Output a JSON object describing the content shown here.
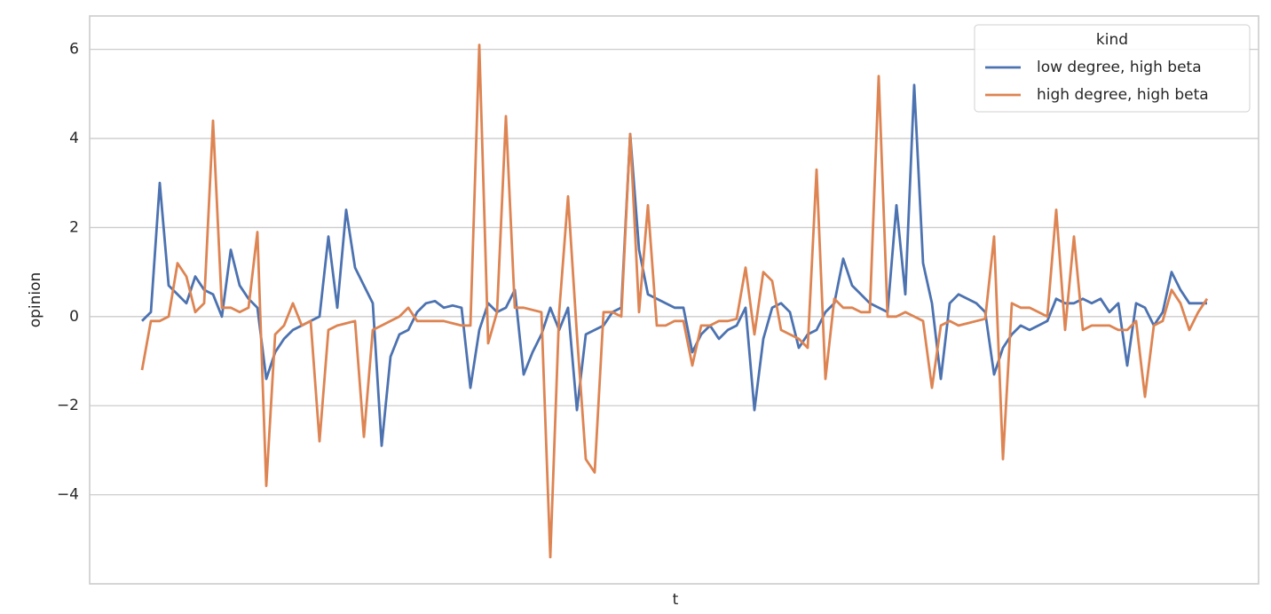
{
  "chart_data": {
    "type": "line",
    "x_label": "t",
    "y_label": "opinion",
    "legend_title": "kind",
    "legend_position": "upper right",
    "grid": true,
    "ylim": [
      -6.0,
      6.75
    ],
    "yticks": [
      {
        "value": -4,
        "label": "−4"
      },
      {
        "value": -2,
        "label": "−2"
      },
      0,
      2,
      4,
      6
    ],
    "categories": [
      null,
      null,
      null,
      null,
      null,
      null,
      null,
      null,
      null,
      null,
      null,
      null,
      null,
      null,
      null,
      null,
      null,
      null,
      null,
      null,
      null,
      null,
      null,
      null,
      null,
      null,
      null,
      null,
      null,
      null,
      null,
      null,
      null,
      null,
      null,
      null,
      null,
      null,
      null,
      null,
      null,
      null,
      null,
      null,
      null,
      null,
      null,
      null,
      null,
      null,
      null,
      null,
      null,
      null,
      null,
      null,
      null,
      null,
      null,
      null,
      null,
      null,
      null,
      null,
      null,
      null,
      null,
      null,
      null,
      null,
      null,
      null,
      null,
      null,
      null,
      null,
      null,
      null,
      null,
      null,
      null,
      null,
      null,
      null,
      null,
      null,
      null,
      null,
      null,
      null,
      null,
      null,
      null,
      null,
      null,
      null,
      null,
      null,
      null,
      null,
      null,
      null,
      null,
      null,
      null,
      null,
      null,
      null,
      null,
      null,
      null,
      null,
      null,
      null,
      null,
      null,
      null,
      null,
      null,
      null,
      null
    ],
    "series": [
      {
        "name": "low degree, high beta",
        "color": "#4c72b0",
        "values": [
          -0.1,
          0.1,
          3.0,
          0.7,
          0.5,
          0.3,
          0.9,
          0.6,
          0.5,
          0.0,
          1.5,
          0.7,
          0.4,
          0.2,
          -1.4,
          -0.8,
          -0.5,
          -0.3,
          -0.2,
          -0.1,
          0.0,
          1.8,
          0.2,
          2.4,
          1.1,
          0.7,
          0.3,
          -2.9,
          -0.9,
          -0.4,
          -0.3,
          0.1,
          0.3,
          0.35,
          0.2,
          0.25,
          0.2,
          -1.6,
          -0.3,
          0.3,
          0.1,
          0.2,
          0.6,
          -1.3,
          -0.8,
          -0.4,
          0.2,
          -0.3,
          0.2,
          -2.1,
          -0.4,
          -0.3,
          -0.2,
          0.1,
          0.2,
          4.1,
          1.5,
          0.5,
          0.4,
          0.3,
          0.2,
          0.2,
          -0.8,
          -0.4,
          -0.2,
          -0.5,
          -0.3,
          -0.2,
          0.2,
          -2.1,
          -0.5,
          0.2,
          0.3,
          0.1,
          -0.7,
          -0.4,
          -0.3,
          0.1,
          0.3,
          1.3,
          0.7,
          0.5,
          0.3,
          0.2,
          0.1,
          2.5,
          0.5,
          5.2,
          1.2,
          0.3,
          -1.4,
          0.3,
          0.5,
          0.4,
          0.3,
          0.1,
          -1.3,
          -0.7,
          -0.4,
          -0.2,
          -0.3,
          -0.2,
          -0.1,
          0.4,
          0.3,
          0.3,
          0.4,
          0.3,
          0.4,
          0.1,
          0.3,
          -1.1,
          0.3,
          0.2,
          -0.2,
          0.1,
          1.0,
          0.6,
          0.3,
          0.3,
          0.3
        ]
      },
      {
        "name": "high degree, high beta",
        "color": "#dd8452",
        "values": [
          -1.2,
          -0.1,
          -0.1,
          0.0,
          1.2,
          0.9,
          0.1,
          0.3,
          4.4,
          0.2,
          0.2,
          0.1,
          0.2,
          1.9,
          -3.8,
          -0.4,
          -0.2,
          0.3,
          -0.2,
          -0.1,
          -2.8,
          -0.3,
          -0.2,
          -0.15,
          -0.1,
          -2.7,
          -0.3,
          -0.2,
          -0.1,
          0.0,
          0.2,
          -0.1,
          -0.1,
          -0.1,
          -0.1,
          -0.15,
          -0.2,
          -0.2,
          6.1,
          -0.6,
          0.1,
          4.5,
          0.2,
          0.2,
          0.15,
          0.1,
          -5.4,
          0.1,
          2.7,
          -0.4,
          -3.2,
          -3.5,
          0.1,
          0.1,
          0.0,
          4.1,
          0.1,
          2.5,
          -0.2,
          -0.2,
          -0.1,
          -0.1,
          -1.1,
          -0.2,
          -0.2,
          -0.1,
          -0.1,
          -0.05,
          1.1,
          -0.4,
          1.0,
          0.8,
          -0.3,
          -0.4,
          -0.5,
          -0.7,
          3.3,
          -1.4,
          0.4,
          0.2,
          0.2,
          0.1,
          0.1,
          5.4,
          0.0,
          0.0,
          0.1,
          0.0,
          -0.1,
          -1.6,
          -0.2,
          -0.1,
          -0.2,
          -0.15,
          -0.1,
          -0.05,
          1.8,
          -3.2,
          0.3,
          0.2,
          0.2,
          0.1,
          0.0,
          2.4,
          -0.3,
          1.8,
          -0.3,
          -0.2,
          -0.2,
          -0.2,
          -0.3,
          -0.3,
          -0.1,
          -1.8,
          -0.2,
          -0.1,
          0.6,
          0.3,
          -0.3,
          0.1,
          0.4
        ]
      }
    ]
  }
}
